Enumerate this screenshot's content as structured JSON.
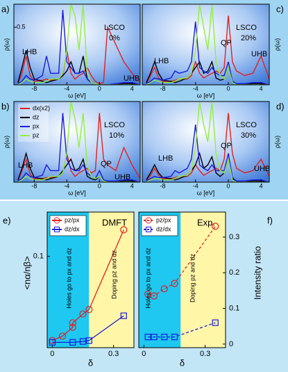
{
  "chart_data": [
    {
      "type": "line",
      "panel": "a)",
      "ylabel": "ρ(ω)",
      "xlabel": "ω [eV]",
      "xlim": [
        -10.5,
        5
      ],
      "ylim": [
        0,
        0.7
      ],
      "xticks": [
        -8,
        -4,
        0,
        4
      ],
      "yticks": [
        0.5
      ],
      "annotations": [
        "LSCO",
        "0%",
        "LHB",
        "UHB"
      ],
      "x": [
        -10,
        -9.5,
        -9,
        -8.5,
        -8,
        -7,
        -6.5,
        -6,
        -5,
        -4.5,
        -4,
        -3.5,
        -3,
        -2.5,
        -2,
        -1.5,
        -1,
        -0.5,
        0,
        0.5,
        1,
        2,
        3,
        4,
        5
      ],
      "series": [
        {
          "color": "#e02020",
          "values": [
            0.01,
            0.1,
            0.25,
            0.08,
            0.03,
            0.04,
            0.05,
            0.04,
            0.05,
            0.08,
            0.3,
            0.1,
            0.05,
            0.08,
            0.1,
            0.15,
            0.08,
            0.03,
            0.01,
            0.02,
            0.5,
            0.35,
            0.2,
            0.1,
            0.02
          ]
        },
        {
          "color": "#000000",
          "values": [
            0.02,
            0.15,
            0.3,
            0.15,
            0.05,
            0.03,
            0.02,
            0.03,
            0.05,
            0.08,
            0.12,
            0.2,
            0.1,
            0.1,
            0.25,
            0.05,
            0.02,
            0.01,
            0,
            0,
            0,
            0,
            0.01,
            0.01,
            0
          ]
        },
        {
          "color": "#1a1adc",
          "values": [
            0.01,
            0.03,
            0.08,
            0.05,
            0.04,
            0.08,
            0.25,
            0.1,
            0.1,
            0.65,
            0.2,
            0.15,
            0.1,
            0.1,
            0.12,
            0.05,
            0.02,
            0.01,
            0,
            0,
            0,
            0.01,
            0.02,
            0.02,
            0
          ]
        },
        {
          "color": "#90ee40",
          "values": [
            0,
            0.02,
            0.05,
            0.03,
            0.02,
            0.02,
            0.03,
            0.05,
            0.05,
            0.1,
            0.3,
            0.7,
            0.6,
            0.3,
            0.7,
            0.1,
            0.02,
            0.01,
            0,
            0,
            0,
            0,
            0,
            0,
            0
          ]
        }
      ]
    },
    {
      "type": "line",
      "panel": "b)",
      "ylabel": "ρ(ω)",
      "xlabel": "ω [eV]",
      "xlim": [
        -10.5,
        5
      ],
      "ylim": [
        0,
        0.7
      ],
      "xticks": [
        -8,
        -4,
        0,
        4
      ],
      "annotations": [
        "LSCO",
        "10%",
        "QP",
        "LHB",
        "UHB"
      ],
      "x": [
        -10,
        -9.5,
        -9,
        -8.5,
        -8,
        -7,
        -6.5,
        -6,
        -5,
        -4.5,
        -4,
        -3.5,
        -3,
        -2.5,
        -2,
        -1.5,
        -1,
        -0.5,
        0,
        0.5,
        1,
        2,
        3,
        4,
        5
      ],
      "series": [
        {
          "name": "dx(x2)",
          "color": "#e02020",
          "values": [
            0.01,
            0.1,
            0.2,
            0.07,
            0.03,
            0.03,
            0.04,
            0.04,
            0.05,
            0.08,
            0.25,
            0.1,
            0.05,
            0.08,
            0.1,
            0.12,
            0.08,
            0.1,
            0.6,
            0.2,
            0.15,
            0.1,
            0.3,
            0.15,
            0.03
          ]
        },
        {
          "name": "dz",
          "color": "#000000",
          "values": [
            0.02,
            0.12,
            0.25,
            0.12,
            0.04,
            0.03,
            0.02,
            0.03,
            0.05,
            0.1,
            0.15,
            0.2,
            0.1,
            0.12,
            0.2,
            0.05,
            0.03,
            0.02,
            0.05,
            0.01,
            0,
            0,
            0.01,
            0.01,
            0
          ]
        },
        {
          "name": "px",
          "color": "#1a1adc",
          "values": [
            0.01,
            0.03,
            0.08,
            0.05,
            0.04,
            0.06,
            0.15,
            0.1,
            0.1,
            0.6,
            0.2,
            0.12,
            0.1,
            0.1,
            0.15,
            0.08,
            0.05,
            0.03,
            0.1,
            0.02,
            0.01,
            0.01,
            0.02,
            0.02,
            0
          ]
        },
        {
          "name": "pz",
          "color": "#90ee40",
          "values": [
            0,
            0.02,
            0.05,
            0.03,
            0.02,
            0.02,
            0.03,
            0.05,
            0.05,
            0.08,
            0.25,
            0.7,
            0.55,
            0.3,
            0.6,
            0.15,
            0.05,
            0.03,
            0.05,
            0.01,
            0,
            0,
            0,
            0,
            0
          ]
        }
      ]
    },
    {
      "type": "line",
      "panel": "c)",
      "ylabel": "ρ(ω)",
      "xlabel": "ω [eV]",
      "xlim": [
        -10.5,
        5
      ],
      "ylim": [
        0,
        0.7
      ],
      "xticks": [
        -8,
        -4,
        0,
        4
      ],
      "annotations": [
        "LSCO",
        "20%",
        "QP",
        "LHB",
        "UHB"
      ],
      "x": [
        -10,
        -9.5,
        -9,
        -8.5,
        -8,
        -7,
        -6.5,
        -6,
        -5,
        -4.5,
        -4,
        -3.5,
        -3,
        -2.5,
        -2,
        -1.5,
        -1,
        -0.5,
        0,
        0.5,
        1,
        2,
        3,
        4,
        5
      ],
      "series": [
        {
          "color": "#e02020",
          "values": [
            0.01,
            0.08,
            0.15,
            0.06,
            0.03,
            0.03,
            0.04,
            0.05,
            0.05,
            0.08,
            0.2,
            0.1,
            0.06,
            0.08,
            0.1,
            0.12,
            0.1,
            0.15,
            0.6,
            0.2,
            0.12,
            0.08,
            0.1,
            0.25,
            0.05
          ]
        },
        {
          "color": "#000000",
          "values": [
            0.02,
            0.1,
            0.2,
            0.1,
            0.04,
            0.03,
            0.02,
            0.03,
            0.06,
            0.1,
            0.15,
            0.2,
            0.1,
            0.12,
            0.2,
            0.06,
            0.04,
            0.05,
            0.15,
            0.02,
            0,
            0,
            0.01,
            0.01,
            0
          ]
        },
        {
          "color": "#1a1adc",
          "values": [
            0.01,
            0.03,
            0.06,
            0.05,
            0.04,
            0.06,
            0.12,
            0.1,
            0.12,
            0.2,
            0.55,
            0.15,
            0.12,
            0.1,
            0.15,
            0.1,
            0.08,
            0.08,
            0.2,
            0.03,
            0.01,
            0.01,
            0.02,
            0.02,
            0
          ]
        },
        {
          "color": "#90ee40",
          "values": [
            0,
            0.02,
            0.04,
            0.03,
            0.02,
            0.02,
            0.03,
            0.05,
            0.06,
            0.1,
            0.3,
            0.7,
            0.5,
            0.3,
            0.7,
            0.2,
            0.08,
            0.05,
            0.15,
            0.02,
            0,
            0,
            0,
            0,
            0
          ]
        }
      ]
    },
    {
      "type": "line",
      "panel": "d)",
      "ylabel": "ρ(ω)",
      "xlabel": "ω [eV]",
      "xlim": [
        -10.5,
        5
      ],
      "ylim": [
        0,
        0.7
      ],
      "xticks": [
        -8,
        -4,
        0,
        4
      ],
      "annotations": [
        "LSCO",
        "30%",
        "QP",
        "LHB",
        "UHB"
      ],
      "x": [
        -10,
        -9.5,
        -9,
        -8.5,
        -8,
        -7,
        -6.5,
        -6,
        -5,
        -4.5,
        -4,
        -3.5,
        -3,
        -2.5,
        -2,
        -1.5,
        -1,
        -0.5,
        0,
        0.5,
        1,
        2,
        3,
        4,
        5
      ],
      "series": [
        {
          "color": "#e02020",
          "values": [
            0.01,
            0.06,
            0.12,
            0.06,
            0.03,
            0.03,
            0.04,
            0.05,
            0.05,
            0.08,
            0.15,
            0.1,
            0.06,
            0.08,
            0.1,
            0.12,
            0.1,
            0.2,
            0.6,
            0.25,
            0.12,
            0.08,
            0.1,
            0.2,
            0.05
          ]
        },
        {
          "color": "#000000",
          "values": [
            0.02,
            0.08,
            0.15,
            0.08,
            0.04,
            0.03,
            0.02,
            0.03,
            0.06,
            0.1,
            0.15,
            0.25,
            0.12,
            0.15,
            0.22,
            0.08,
            0.05,
            0.08,
            0.2,
            0.03,
            0,
            0,
            0.01,
            0.01,
            0
          ]
        },
        {
          "color": "#1a1adc",
          "values": [
            0.01,
            0.03,
            0.05,
            0.04,
            0.04,
            0.05,
            0.1,
            0.08,
            0.12,
            0.2,
            0.5,
            0.15,
            0.12,
            0.1,
            0.15,
            0.1,
            0.1,
            0.1,
            0.25,
            0.04,
            0.01,
            0.01,
            0.02,
            0.02,
            0
          ]
        },
        {
          "color": "#90ee40",
          "values": [
            0,
            0.02,
            0.03,
            0.03,
            0.02,
            0.02,
            0.03,
            0.05,
            0.06,
            0.1,
            0.3,
            0.7,
            0.5,
            0.35,
            0.7,
            0.25,
            0.1,
            0.08,
            0.2,
            0.02,
            0,
            0,
            0,
            0,
            0
          ]
        }
      ]
    },
    {
      "type": "ratio",
      "panel": "e)",
      "title": "DMFT",
      "ylabel": "<nα/nβ>",
      "xlabel": "δ",
      "xlim": [
        -0.025,
        0.4
      ],
      "ylim": [
        -0.003,
        0.15
      ],
      "xticks": [
        0,
        0.3
      ],
      "yticks": [
        0.1
      ],
      "yaxis_side": "left",
      "annotations": [
        "Holes go to px and dz",
        "Doping pz and dz"
      ],
      "shaded": [
        {
          "xlim": [
            -0.025,
            0.18
          ],
          "color": "#1ec8f0"
        },
        {
          "xlim": [
            0.18,
            0.4
          ],
          "color": "#fff6a8"
        }
      ],
      "series": [
        {
          "name": "pz/px",
          "color": "#e02020",
          "marker": "circle",
          "linestyle": "solid",
          "x": [
            0,
            0.05,
            0.1,
            0.1,
            0.15,
            0.18,
            0.35
          ],
          "values": [
            0.005,
            0.01,
            0.02,
            0.025,
            0.035,
            0.04,
            0.13
          ]
        },
        {
          "name": "dz/dx",
          "color": "#1a1adc",
          "marker": "square",
          "linestyle": "solid",
          "x": [
            0,
            0.1,
            0.15,
            0.18,
            0.35
          ],
          "values": [
            0.003,
            0.003,
            0.004,
            0.005,
            0.033
          ]
        }
      ]
    },
    {
      "type": "ratio",
      "panel": "f)",
      "title": "Exp.",
      "ylabel": "Intensity ratio",
      "xlabel": "δ",
      "xlim": [
        -0.025,
        0.4
      ],
      "ylim": [
        -0.01,
        0.37
      ],
      "xticks": [
        0,
        0.3
      ],
      "yticks": [
        0,
        0.1,
        0.2,
        0.3
      ],
      "yaxis_side": "right",
      "annotations": [
        "Holes go to px and dz",
        "Doping pz and dz"
      ],
      "shaded": [
        {
          "xlim": [
            -0.025,
            0.18
          ],
          "color": "#1ec8f0"
        },
        {
          "xlim": [
            0.18,
            0.4
          ],
          "color": "#fff6a8"
        }
      ],
      "series": [
        {
          "name": "pz/px",
          "color": "#e02020",
          "marker": "circle",
          "linestyle": "dashed",
          "x": [
            0.02,
            0.05,
            0.1,
            0.15,
            0.35
          ],
          "values": [
            0.14,
            0.135,
            0.155,
            0.17,
            0.33
          ]
        },
        {
          "name": "dz/dx",
          "color": "#1a1adc",
          "marker": "square",
          "linestyle": "dashed",
          "x": [
            0.02,
            0.05,
            0.1,
            0.15,
            0.35
          ],
          "values": [
            0.02,
            0.02,
            0.02,
            0.02,
            0.06
          ]
        }
      ]
    }
  ]
}
